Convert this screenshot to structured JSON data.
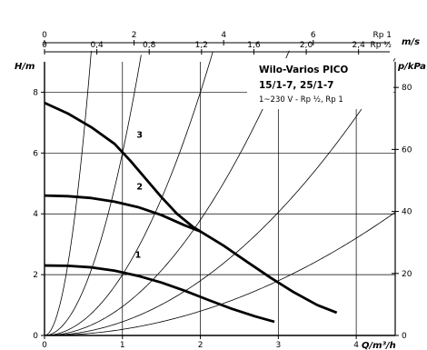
{
  "chart_data": {
    "type": "line",
    "title": "",
    "legend_box": {
      "line1": "Wilo-Varios PICO",
      "line2": "15/1-7, 25/1-7",
      "line3": "1~230 V - Rp ½, Rp 1"
    },
    "x_axis": {
      "label": "Q/m³/h",
      "range": [
        0,
        4.5
      ],
      "ticks": [
        0,
        1,
        2,
        3,
        4
      ],
      "tick_labels": [
        "0",
        "1",
        "2",
        "3",
        "4"
      ]
    },
    "y_axis_left": {
      "label": "H/m",
      "range": [
        0,
        9
      ],
      "ticks": [
        0,
        2,
        4,
        6,
        8
      ],
      "tick_labels": [
        "0",
        "2",
        "4",
        "6",
        "8"
      ]
    },
    "y_axis_right": {
      "label": "p/kPa",
      "ticks": [
        0,
        20,
        40,
        60,
        80
      ],
      "tick_labels": [
        "0",
        "20",
        "40",
        "60",
        "80"
      ]
    },
    "top_axis_velocity_rp_half": {
      "ticks": [
        0,
        0.4,
        0.8,
        1.2,
        1.6,
        2.0,
        2.4
      ],
      "tick_labels": [
        "0",
        "0,4",
        "0,8",
        "1,2",
        "1,6",
        "2,0",
        "2,4"
      ],
      "end_label": "Rp ½"
    },
    "top_axis_velocity_rp_one": {
      "unit": "m/s",
      "ticks": [
        0,
        2,
        4,
        6
      ],
      "tick_labels": [
        "0",
        "2",
        "4",
        "6"
      ],
      "end_label": "Rp 1"
    },
    "grid": true,
    "series": [
      {
        "name": "1",
        "points": [
          [
            0,
            2.3
          ],
          [
            0.3,
            2.29
          ],
          [
            0.6,
            2.24
          ],
          [
            0.9,
            2.13
          ],
          [
            1.2,
            1.96
          ],
          [
            1.5,
            1.74
          ],
          [
            1.8,
            1.47
          ],
          [
            2.1,
            1.17
          ],
          [
            2.4,
            0.88
          ],
          [
            2.7,
            0.63
          ],
          [
            2.95,
            0.45
          ]
        ]
      },
      {
        "name": "2",
        "points": [
          [
            0,
            4.6
          ],
          [
            0.3,
            4.58
          ],
          [
            0.6,
            4.52
          ],
          [
            0.9,
            4.4
          ],
          [
            1.2,
            4.22
          ],
          [
            1.5,
            3.96
          ],
          [
            1.8,
            3.62
          ],
          [
            2.0,
            3.42
          ]
        ]
      },
      {
        "name": "3",
        "points": [
          [
            0,
            7.65
          ],
          [
            0.3,
            7.3
          ],
          [
            0.6,
            6.85
          ],
          [
            0.9,
            6.3
          ],
          [
            1.1,
            5.75
          ],
          [
            1.3,
            5.15
          ],
          [
            1.5,
            4.55
          ],
          [
            1.7,
            4.0
          ],
          [
            1.9,
            3.58
          ],
          [
            2.0,
            3.42
          ],
          [
            2.3,
            2.95
          ],
          [
            2.6,
            2.42
          ],
          [
            2.9,
            1.9
          ],
          [
            3.2,
            1.42
          ],
          [
            3.5,
            1.0
          ],
          [
            3.75,
            0.75
          ]
        ]
      }
    ],
    "curve_label_positions": [
      {
        "label": "1",
        "x": 1.2,
        "y": 2.55
      },
      {
        "label": "2",
        "x": 1.22,
        "y": 4.8
      },
      {
        "label": "3",
        "x": 1.22,
        "y": 6.5
      }
    ],
    "system_curves_k": [
      26,
      6,
      2,
      0.95,
      0.45,
      0.2
    ]
  }
}
